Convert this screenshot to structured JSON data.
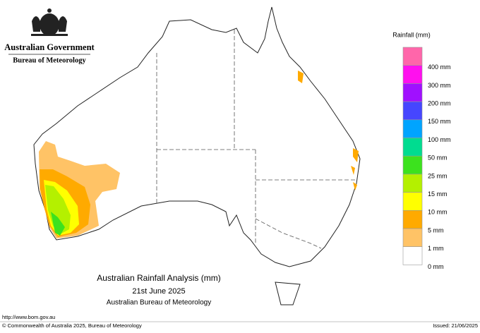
{
  "header": {
    "government": "Australian Government",
    "agency": "Bureau of Meteorology"
  },
  "legend": {
    "title": "Rainfall (mm)",
    "items": [
      {
        "label": "400 mm",
        "color": "#ff66aa"
      },
      {
        "label": "300 mm",
        "color": "#ff10ee"
      },
      {
        "label": "200 mm",
        "color": "#a010ff"
      },
      {
        "label": "150 mm",
        "color": "#4646ff"
      },
      {
        "label": "100 mm",
        "color": "#00a4ff"
      },
      {
        "label": "50 mm",
        "color": "#00dc90"
      },
      {
        "label": "25 mm",
        "color": "#3ce21e"
      },
      {
        "label": "15 mm",
        "color": "#b4f000"
      },
      {
        "label": "10 mm",
        "color": "#ffff00"
      },
      {
        "label": "5 mm",
        "color": "#ffaa00"
      },
      {
        "label": "1 mm",
        "color": "#ffc366"
      },
      {
        "label": "0 mm",
        "color": "#ffffff"
      }
    ]
  },
  "title": {
    "line1": "Australian Rainfall Analysis (mm)",
    "line2": "21st June 2025",
    "line3": "Australian Bureau of Meteorology"
  },
  "footer": {
    "url": "http://www.bom.gov.au",
    "copyright": "© Commonwealth of Australia 2025, Bureau of Meteorology",
    "issued": "Issued: 21/06/2025"
  }
}
